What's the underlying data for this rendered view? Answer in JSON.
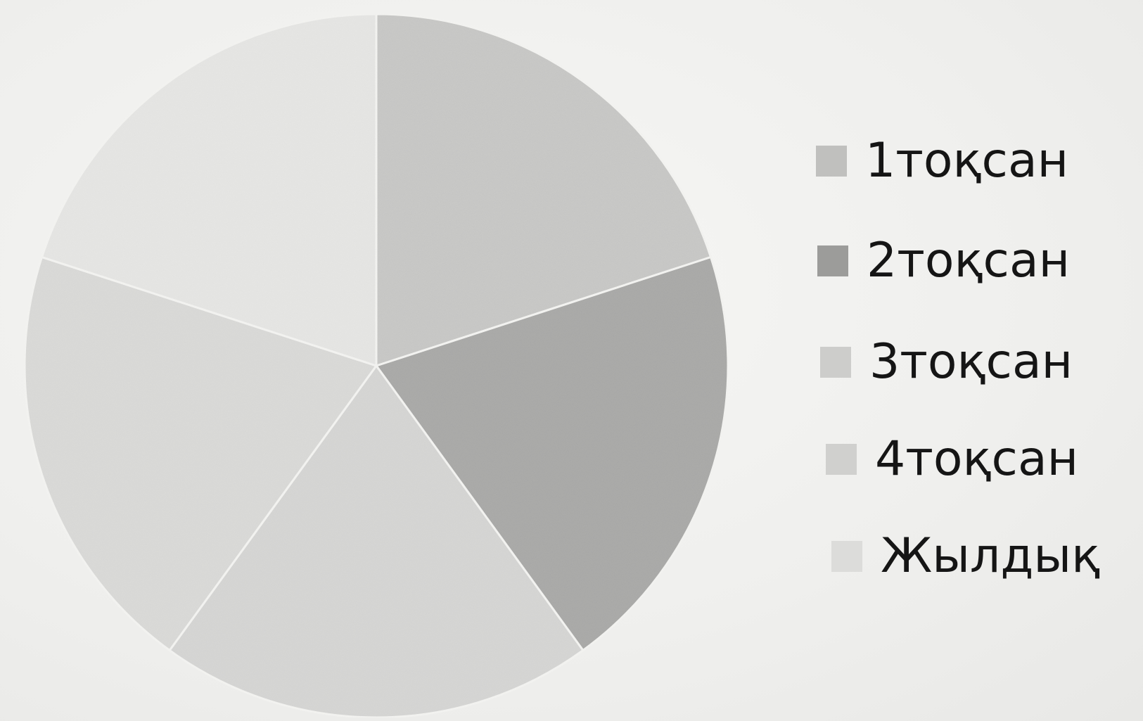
{
  "chart_data": {
    "type": "pie",
    "title": "",
    "legend_position": "right",
    "start_angle_deg": 0,
    "direction": "clockwise",
    "categories": [
      "1тоқсан",
      "2тоқсан",
      "3тоқсан",
      "4тоқсан",
      "Жылдық"
    ],
    "values": [
      20,
      20,
      20,
      20,
      20
    ],
    "colors": [
      "#c8c8c6",
      "#a9a9a7",
      "#d6d6d4",
      "#dadad8",
      "#e6e6e4"
    ]
  },
  "legend": {
    "items": [
      {
        "label": "1тоқсан",
        "color": "#c0c0be"
      },
      {
        "label": "2тоқсан",
        "color": "#9c9c9a"
      },
      {
        "label": "3тоқсан",
        "color": "#cdcdcb"
      },
      {
        "label": "4тоқсан",
        "color": "#d0d0ce"
      },
      {
        "label": "Жылдық",
        "color": "#dcdcda"
      }
    ]
  }
}
